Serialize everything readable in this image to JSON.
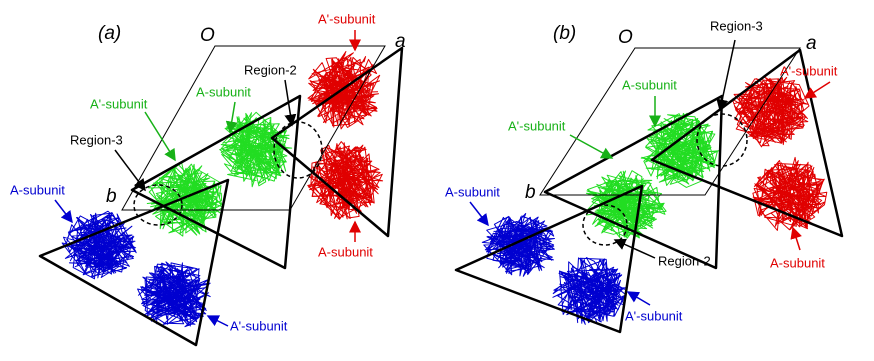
{
  "panels": [
    {
      "label": "(a)",
      "origin": "O",
      "axis_a": "a",
      "axis_b": "b",
      "annotations": [
        "A'-subunit",
        "Region-2",
        "A-subunit",
        "A'-subunit",
        "Region-3",
        "A-subunit",
        "A'-subunit",
        "A-subunit"
      ]
    },
    {
      "label": "(b)",
      "origin": "O",
      "axis_a": "a",
      "axis_b": "b",
      "annotations": [
        "Region-3",
        "A-subunit",
        "A'-subunit",
        "A'-subunit",
        "A-subunit",
        "Region-2",
        "A'-subunit",
        "A-subunit"
      ]
    }
  ]
}
